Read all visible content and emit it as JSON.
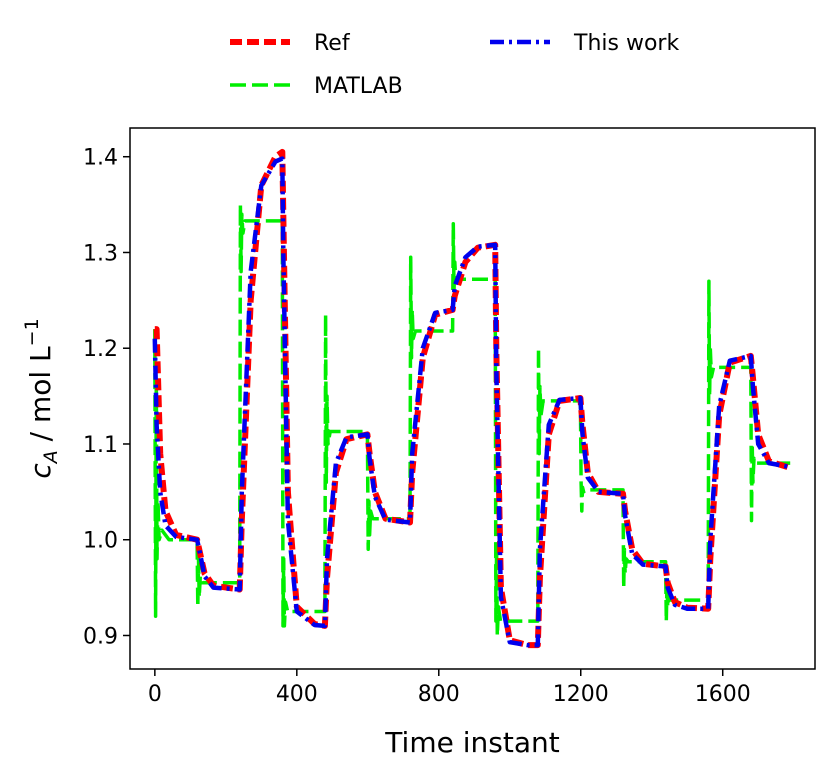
{
  "chart_data": {
    "type": "line",
    "xlabel": "Time instant",
    "ylabel_main": "c",
    "ylabel_sub": "A",
    "ylabel_unit": " / mol L",
    "ylabel_sup": "−1",
    "xlim": [
      -70,
      1860
    ],
    "ylim": [
      0.865,
      1.43
    ],
    "xticks": [
      0,
      400,
      800,
      1200,
      1600
    ],
    "xtick_labels": [
      "0",
      "400",
      "800",
      "1200",
      "1600"
    ],
    "yticks": [
      0.9,
      1.0,
      1.1,
      1.2,
      1.3,
      1.4
    ],
    "ytick_labels": [
      "0.9",
      "1.0",
      "1.1",
      "1.2",
      "1.3",
      "1.4"
    ],
    "grid": false,
    "legend_position": "top",
    "setpoints": {
      "x_change": [
        0,
        120,
        240,
        360,
        480,
        600,
        720,
        840,
        960,
        1080,
        1200,
        1320,
        1440,
        1560,
        1680,
        1800
      ],
      "ref_levels": [
        1.0,
        0.948,
        1.405,
        0.91,
        1.11,
        1.018,
        1.24,
        1.308,
        0.89,
        1.148,
        1.048,
        0.972,
        0.928,
        1.192,
        1.075
      ]
    },
    "series": [
      {
        "name": "Ref",
        "color": "#ff0000",
        "dash": "dashed",
        "x": [
          0,
          5,
          15,
          30,
          60,
          119,
          125,
          140,
          165,
          239,
          245,
          270,
          300,
          340,
          359,
          362,
          375,
          400,
          450,
          479,
          485,
          510,
          540,
          599,
          605,
          620,
          650,
          719,
          725,
          755,
          790,
          839,
          845,
          875,
          910,
          959,
          962,
          975,
          1000,
          1050,
          1079,
          1085,
          1110,
          1140,
          1199,
          1205,
          1220,
          1250,
          1319,
          1325,
          1345,
          1375,
          1439,
          1445,
          1465,
          1500,
          1559,
          1565,
          1590,
          1620,
          1679,
          1685,
          1700,
          1730,
          1790
        ],
        "y": [
          1.22,
          1.22,
          1.09,
          1.03,
          1.005,
          1.0,
          0.99,
          0.965,
          0.952,
          0.948,
          1.02,
          1.25,
          1.37,
          1.4,
          1.405,
          1.34,
          1.05,
          0.93,
          0.912,
          0.91,
          0.96,
          1.07,
          1.105,
          1.11,
          1.09,
          1.05,
          1.022,
          1.018,
          1.07,
          1.19,
          1.235,
          1.24,
          1.255,
          1.29,
          1.305,
          1.308,
          1.2,
          0.95,
          0.895,
          0.89,
          0.89,
          0.96,
          1.11,
          1.145,
          1.148,
          1.12,
          1.07,
          1.05,
          1.048,
          1.03,
          0.99,
          0.975,
          0.972,
          0.955,
          0.935,
          0.929,
          0.928,
          0.98,
          1.13,
          1.185,
          1.192,
          1.17,
          1.11,
          1.082,
          1.075
        ]
      },
      {
        "name": "MATLAB",
        "color": "#00ee00",
        "dash": "longdash",
        "x": [
          0,
          2,
          4,
          6,
          9,
          12,
          20,
          40,
          119,
          121,
          123,
          125,
          128,
          134,
          239,
          241,
          243,
          245,
          248,
          254,
          359,
          361,
          363,
          365,
          368,
          374,
          479,
          481,
          483,
          485,
          488,
          494,
          599,
          601,
          603,
          605,
          608,
          614,
          719,
          721,
          723,
          725,
          728,
          734,
          839,
          841,
          843,
          845,
          848,
          854,
          959,
          961,
          963,
          965,
          968,
          974,
          1079,
          1081,
          1083,
          1085,
          1088,
          1094,
          1199,
          1201,
          1203,
          1205,
          1208,
          1214,
          1319,
          1321,
          1323,
          1325,
          1328,
          1334,
          1439,
          1441,
          1443,
          1445,
          1448,
          1454,
          1559,
          1561,
          1563,
          1565,
          1568,
          1574,
          1679,
          1681,
          1683,
          1685,
          1688,
          1694,
          1790
        ],
        "y": [
          1.22,
          0.92,
          1.17,
          0.98,
          1.04,
          1.0,
          1.01,
          1.0,
          1.0,
          0.93,
          0.98,
          0.94,
          0.962,
          0.955,
          0.955,
          1.35,
          1.28,
          1.34,
          1.32,
          1.333,
          1.333,
          0.91,
          0.98,
          0.91,
          0.935,
          0.925,
          0.925,
          1.235,
          1.06,
          1.15,
          1.1,
          1.113,
          1.113,
          0.99,
          1.04,
          1.005,
          1.03,
          1.022,
          1.022,
          1.295,
          1.19,
          1.24,
          1.21,
          1.218,
          1.218,
          1.33,
          1.26,
          1.29,
          1.27,
          1.272,
          1.272,
          0.915,
          0.99,
          0.9,
          0.93,
          0.915,
          0.915,
          1.2,
          1.09,
          1.16,
          1.13,
          1.145,
          1.145,
          1.06,
          1.03,
          1.055,
          1.05,
          1.052,
          1.052,
          0.95,
          0.99,
          0.965,
          0.98,
          0.977,
          0.977,
          0.915,
          0.955,
          0.93,
          0.94,
          0.937,
          0.937,
          1.27,
          1.15,
          1.2,
          1.17,
          1.18,
          1.18,
          1.02,
          1.1,
          1.06,
          1.085,
          1.08,
          1.08
        ]
      },
      {
        "name": "This work",
        "color": "#0000ee",
        "dash": "dashdot",
        "x": [
          0,
          5,
          15,
          30,
          60,
          119,
          125,
          140,
          165,
          239,
          245,
          270,
          300,
          340,
          359,
          362,
          375,
          400,
          450,
          479,
          485,
          510,
          540,
          599,
          605,
          620,
          650,
          719,
          725,
          755,
          790,
          839,
          845,
          875,
          910,
          959,
          962,
          975,
          1000,
          1050,
          1079,
          1085,
          1110,
          1140,
          1199,
          1205,
          1220,
          1250,
          1319,
          1325,
          1345,
          1375,
          1439,
          1445,
          1465,
          1500,
          1559,
          1565,
          1590,
          1620,
          1679,
          1685,
          1700,
          1730,
          1790
        ],
        "y": [
          1.21,
          1.12,
          1.05,
          1.015,
          1.003,
          1.0,
          0.99,
          0.962,
          0.95,
          0.948,
          1.05,
          1.28,
          1.37,
          1.395,
          1.398,
          1.3,
          1.02,
          0.925,
          0.911,
          0.91,
          0.98,
          1.08,
          1.107,
          1.11,
          1.085,
          1.045,
          1.021,
          1.018,
          1.09,
          1.2,
          1.237,
          1.24,
          1.265,
          1.295,
          1.306,
          1.308,
          1.18,
          0.94,
          0.893,
          0.89,
          0.89,
          0.99,
          1.12,
          1.146,
          1.148,
          1.11,
          1.065,
          1.05,
          1.048,
          1.025,
          0.985,
          0.974,
          0.972,
          0.95,
          0.932,
          0.928,
          0.928,
          1.0,
          1.14,
          1.187,
          1.192,
          1.16,
          1.1,
          1.08,
          1.076
        ]
      }
    ]
  }
}
